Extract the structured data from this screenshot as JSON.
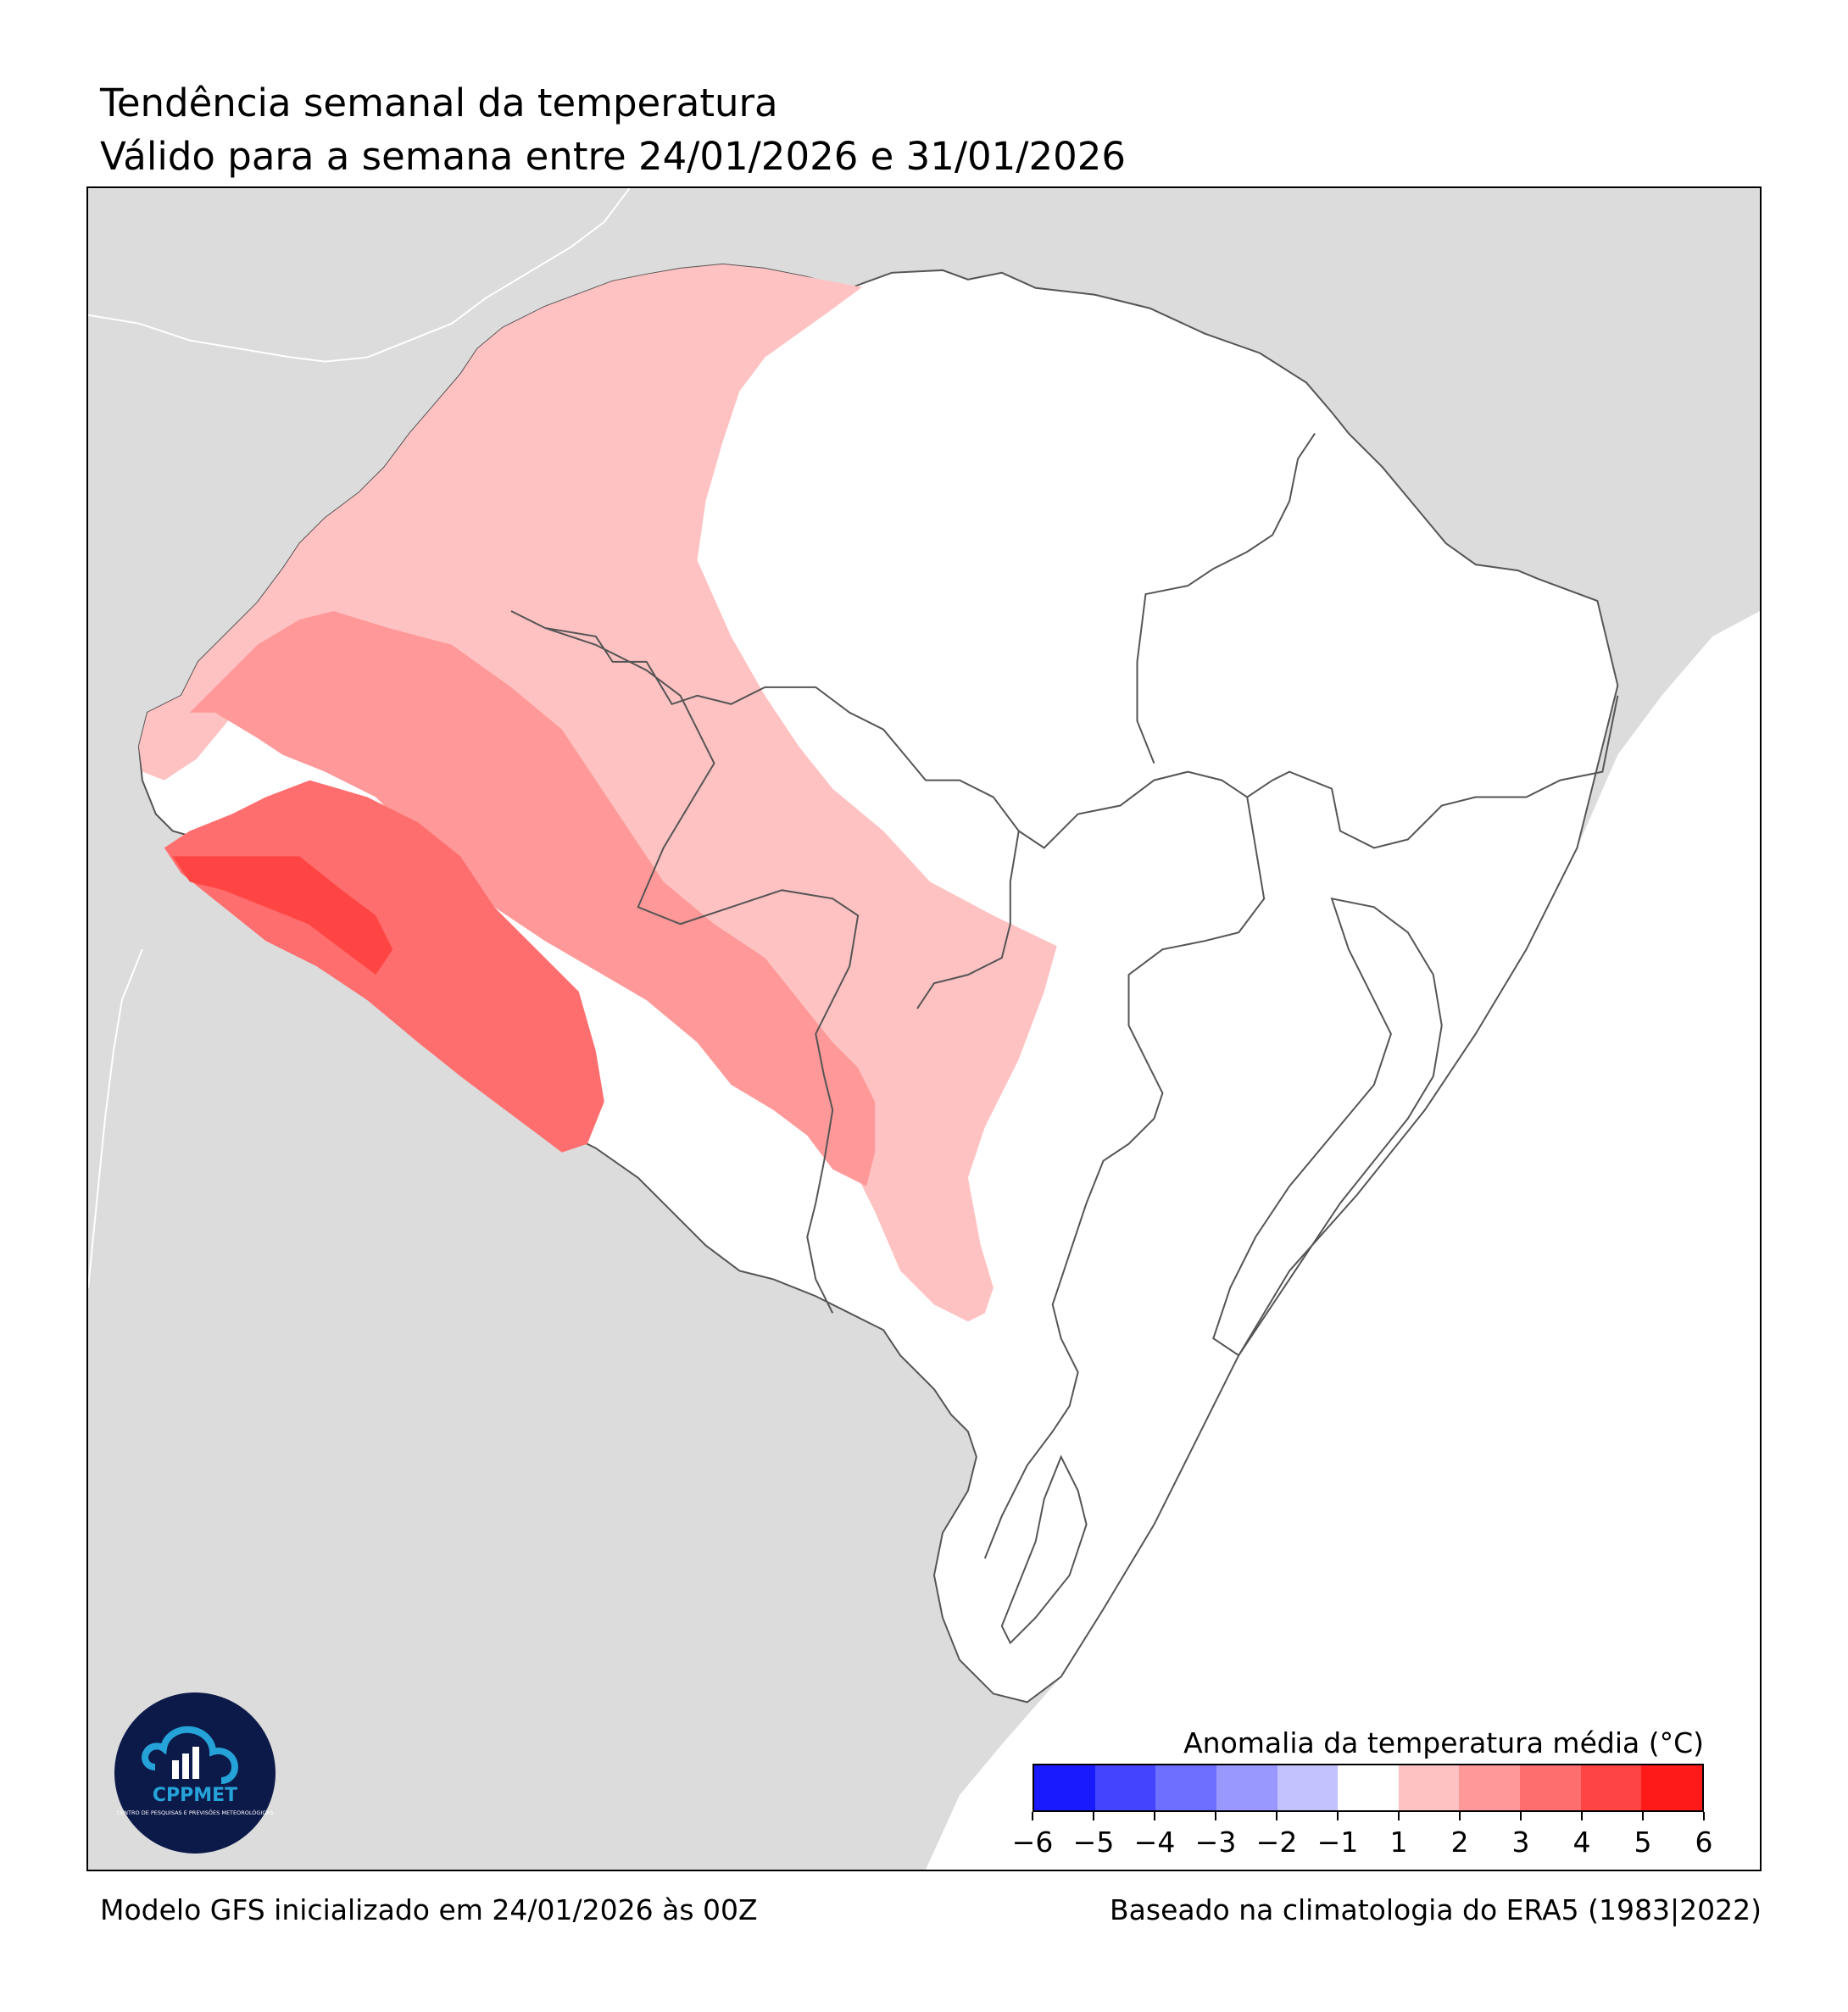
{
  "header": {
    "title": "Tendência semanal da temperatura",
    "subtitle": "Válido para a semana entre 24/01/2026 e 31/01/2026"
  },
  "footer": {
    "model_info": "Modelo GFS inicializado em 24/01/2026 às 00Z",
    "climatology": "Baseado na climatologia do ERA5 (1983|2022)"
  },
  "legend": {
    "title": "Anomalia da temperatura média (°C)",
    "bins": [
      {
        "min": -6,
        "max": -5,
        "color": "#1a1aff"
      },
      {
        "min": -5,
        "max": -4,
        "color": "#4444ff"
      },
      {
        "min": -4,
        "max": -3,
        "color": "#6e6eff"
      },
      {
        "min": -3,
        "max": -2,
        "color": "#9898ff"
      },
      {
        "min": -2,
        "max": -1,
        "color": "#c2c2ff"
      },
      {
        "min": -1,
        "max": 1,
        "color": "#ffffff"
      },
      {
        "min": 1,
        "max": 2,
        "color": "#ffc2c2"
      },
      {
        "min": 2,
        "max": 3,
        "color": "#ff9898"
      },
      {
        "min": 3,
        "max": 4,
        "color": "#ff6e6e"
      },
      {
        "min": 4,
        "max": 5,
        "color": "#ff4444"
      },
      {
        "min": 5,
        "max": 6,
        "color": "#ff1a1a"
      }
    ],
    "tick_labels": [
      "−6",
      "−5",
      "−4",
      "−3",
      "−2",
      "−1",
      "1",
      "2",
      "3",
      "4",
      "5",
      "6"
    ]
  },
  "map": {
    "region": "Rio Grande do Sul",
    "background_color": "#dcdcdc",
    "ocean_color": "#ffffff",
    "border_color": "#555555",
    "zones": [
      {
        "anomaly_range": "1 a 2 °C",
        "color": "#ffc2c2"
      },
      {
        "anomaly_range": "2 a 3 °C",
        "color": "#ff9898"
      },
      {
        "anomaly_range": "3 a 4 °C",
        "color": "#ff6e6e"
      },
      {
        "anomaly_range": "4 a 5 °C",
        "color": "#ff4444"
      }
    ]
  },
  "logo": {
    "name": "CPPMET",
    "subtitle": "CENTRO DE PESQUISAS E PREVISÕES METEOROLÓGICAS"
  }
}
